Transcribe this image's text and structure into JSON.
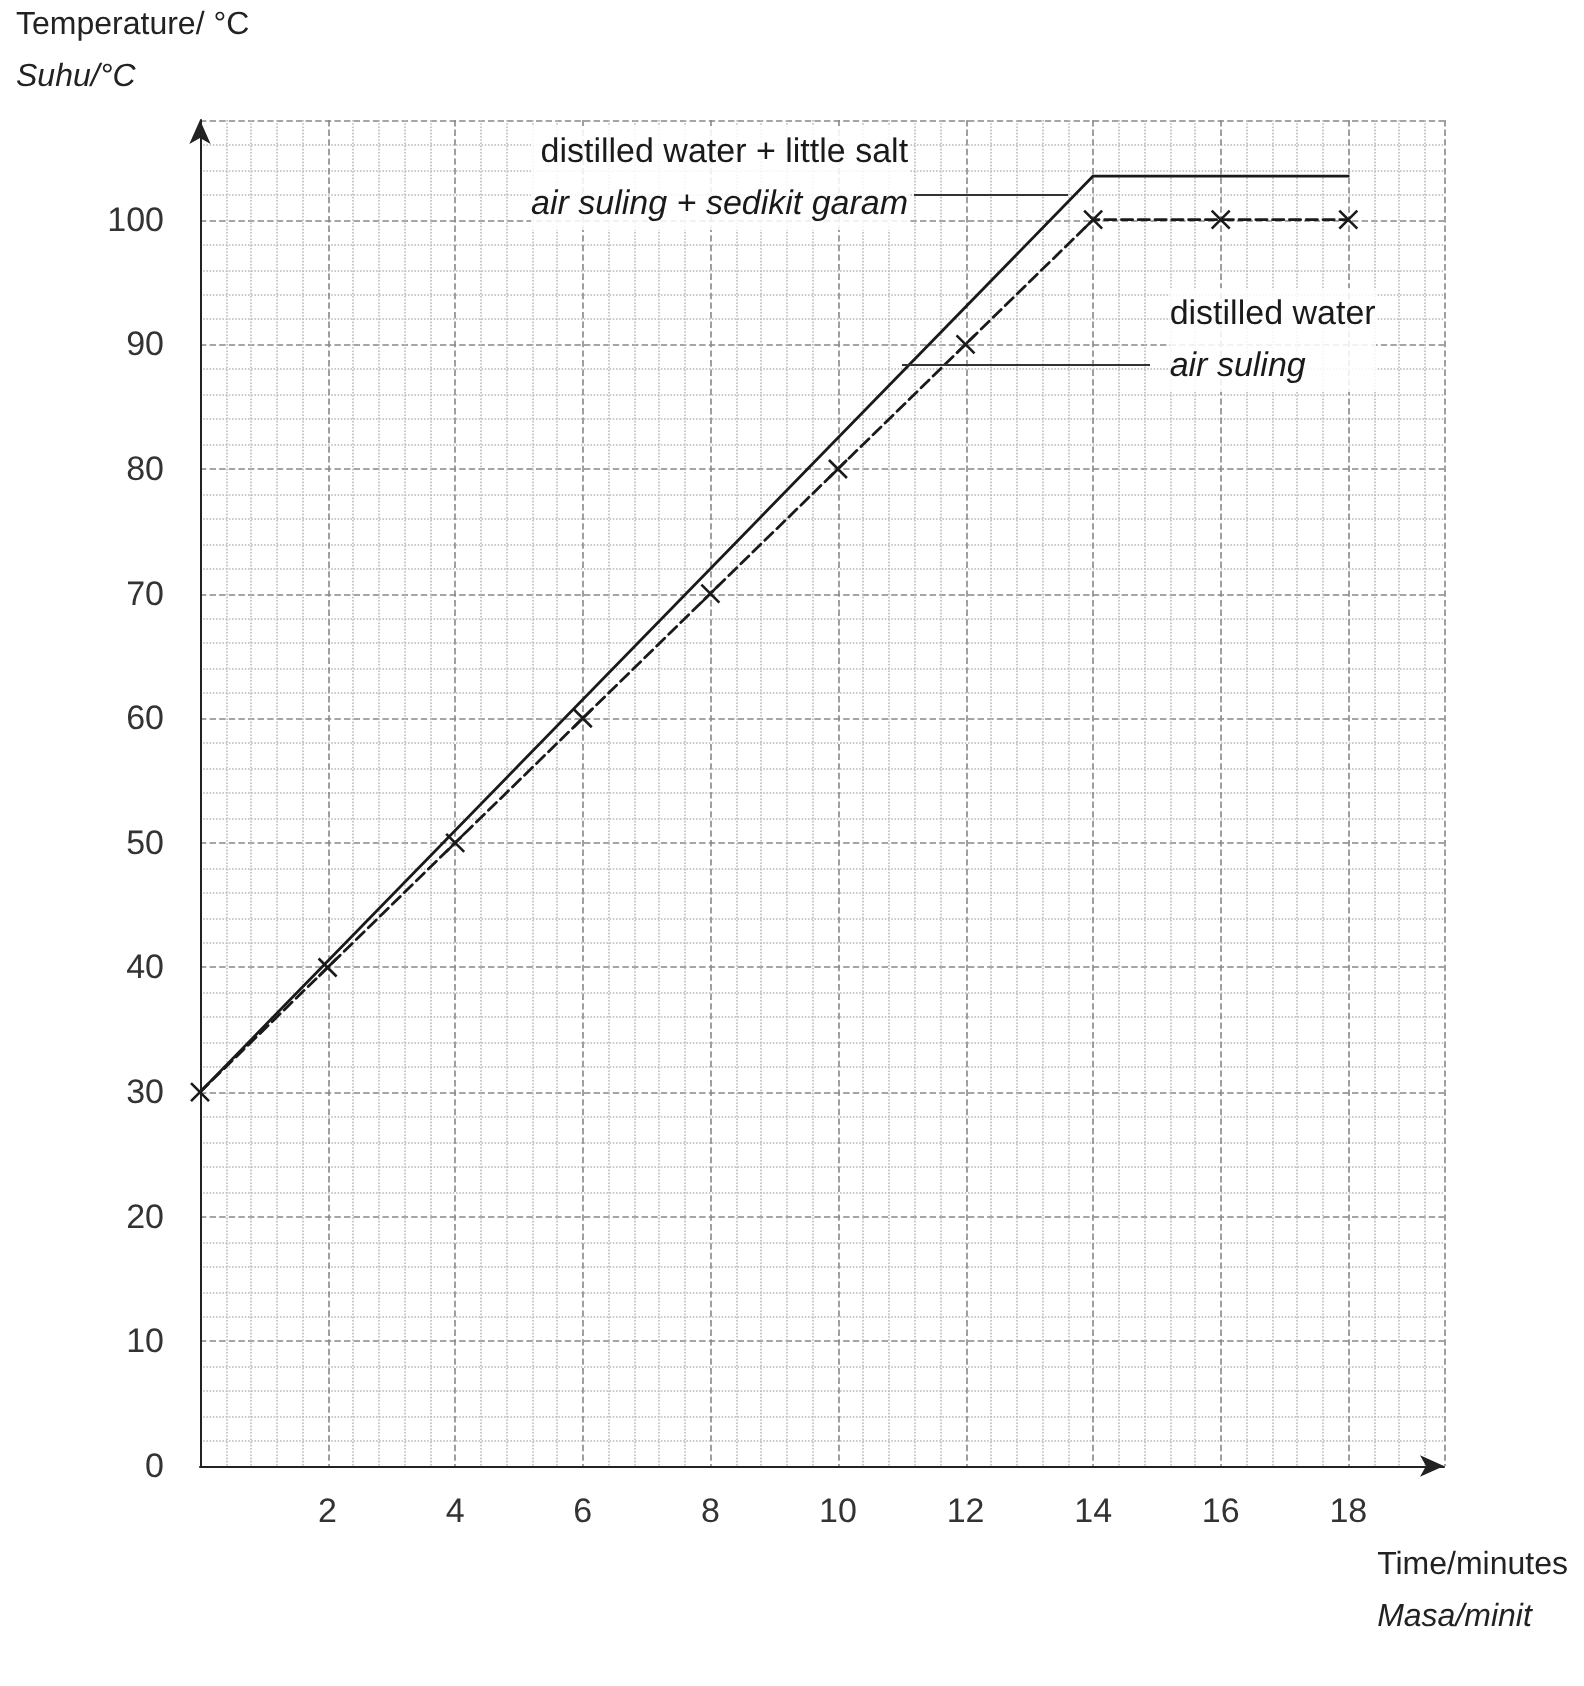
{
  "chart_data": {
    "type": "line",
    "xlabel": "Time/minutes\nMasa/minit",
    "ylabel": "Temperature/ °C\nSuhu/°C",
    "xlim": [
      0,
      19.5
    ],
    "xticks": [
      {
        "value": 0,
        "label": null
      },
      2,
      4,
      6,
      8,
      10,
      12,
      14,
      16,
      18
    ],
    "ylim": [
      0,
      108
    ],
    "yticks": [
      0,
      10,
      20,
      30,
      40,
      50,
      60,
      70,
      80,
      90,
      100
    ],
    "grid": true,
    "series": [
      {
        "name": "distilled water + little salt\nair suling + sedikit garam",
        "color": "#1a1a1a",
        "line_style": "solid",
        "marker": "none",
        "x": [
          0,
          14,
          18
        ],
        "values": [
          30,
          103.5,
          103.5
        ]
      },
      {
        "name": "distilled water\nair suling",
        "color": "#1a1a1a",
        "line_style": "dashed",
        "marker": "cross",
        "x": [
          0,
          2,
          4,
          6,
          8,
          10,
          12,
          14,
          16,
          18
        ],
        "values": [
          30,
          40,
          50,
          60,
          70,
          80,
          90,
          100,
          100,
          100
        ]
      }
    ]
  }
}
